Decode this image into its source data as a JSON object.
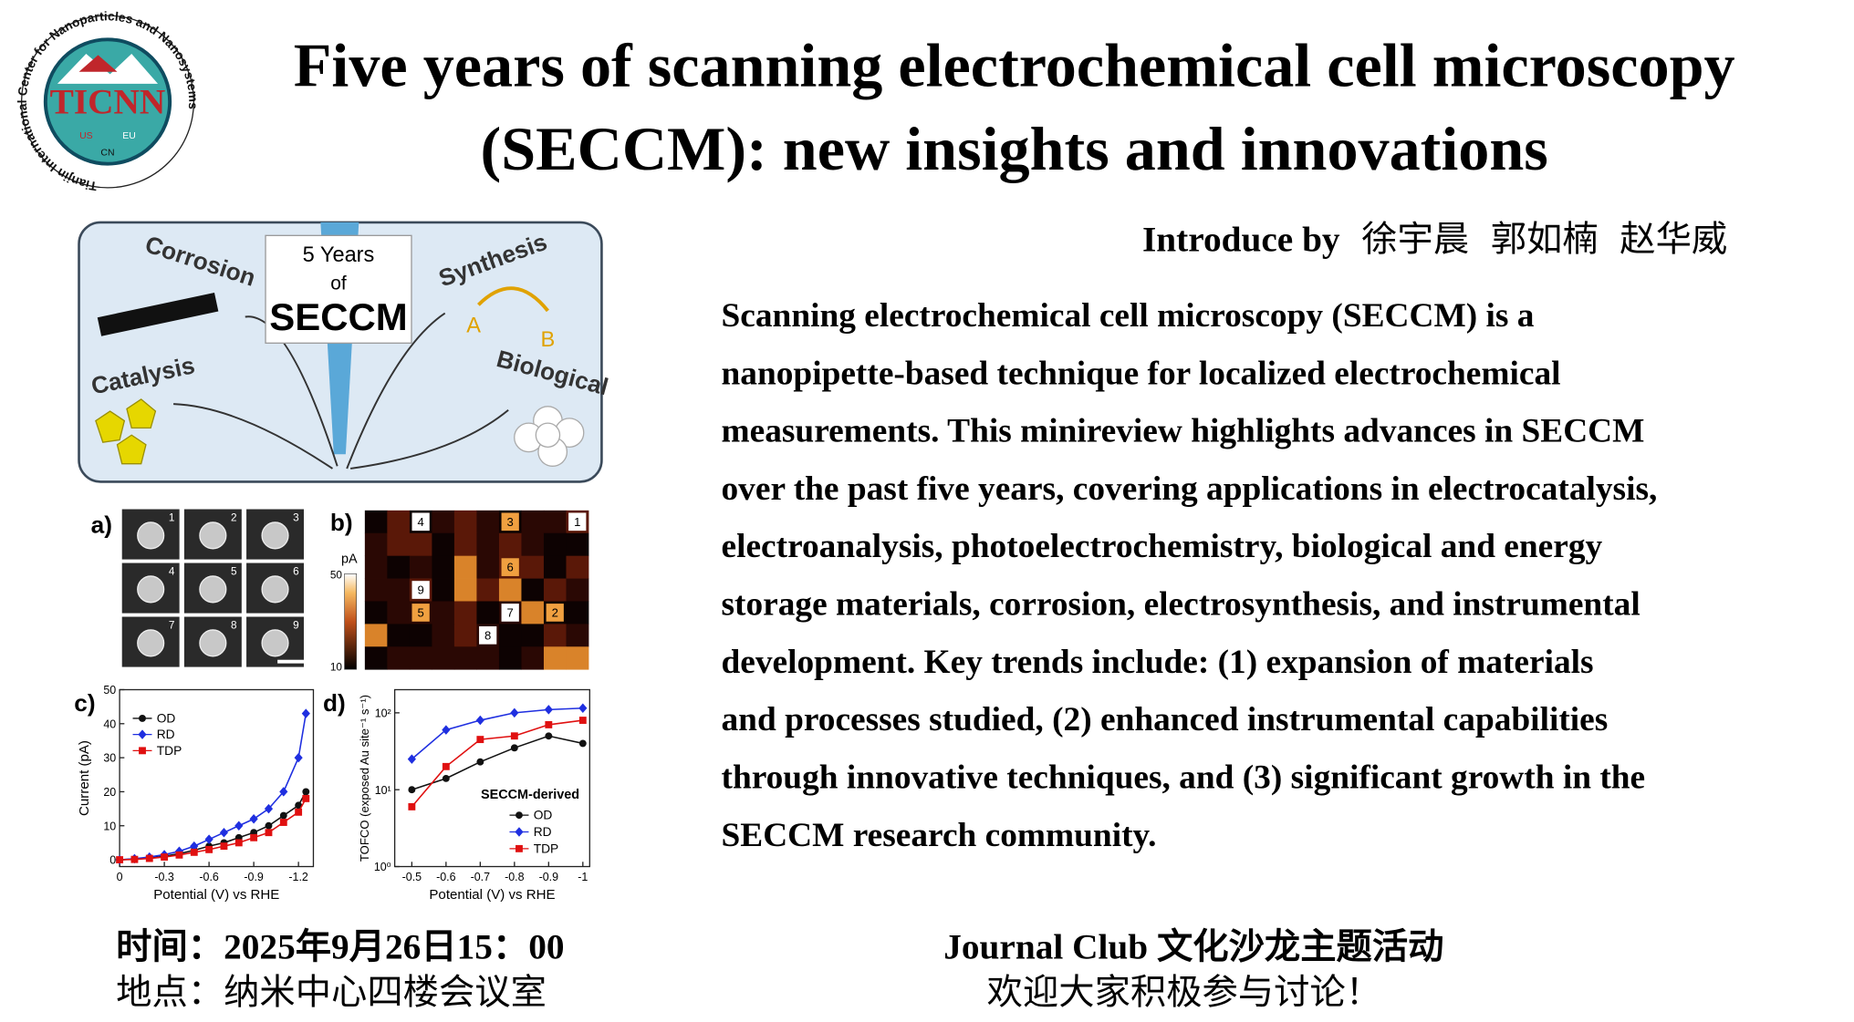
{
  "logo": {
    "ring": "Tianjin International Center for Nanoparticles and Nanosystems",
    "letters": "TICNN",
    "regions": [
      "US",
      "EU",
      "CN"
    ]
  },
  "title": [
    "Five years of scanning electrochemical cell microscopy",
    "(SECCM): new insights and innovations"
  ],
  "presenters": {
    "label": "Introduce by",
    "names": [
      "徐宇晨",
      "郭如楠",
      "赵华威"
    ]
  },
  "abstract_lines": [
    "Scanning electrochemical cell microscopy (SECCM) is a",
    "nanopipette-based technique for localized electrochemical",
    "measurements. This minireview highlights advances in SECCM",
    "over the past five years, covering applications in electrocatalysis,",
    "electroanalysis, photoelectrochemistry, biological and energy",
    "storage materials, corrosion, electrosynthesis, and instrumental",
    "development. Key trends include: (1) expansion of materials",
    "and processes studied, (2) enhanced instrumental capabilities",
    "through innovative techniques, and (3) significant growth in the",
    "SECCM research community."
  ],
  "figure": {
    "schematic": {
      "center": [
        "5 Years",
        "of",
        "SECCM"
      ],
      "corrosion": "Corrosion",
      "synthesis": "Synthesis",
      "a": "A",
      "b": "B",
      "catalysis": "Catalysis",
      "biological": "Biological"
    },
    "panel_a": {
      "label": "a)",
      "numbers": [
        1,
        2,
        3,
        4,
        5,
        6,
        7,
        8,
        9
      ]
    },
    "panel_b": {
      "label": "b)",
      "unit": "pA",
      "scale": [
        50,
        10
      ],
      "numbers": [
        4,
        3,
        1,
        6,
        9,
        5,
        7,
        2,
        8
      ]
    }
  },
  "chart_data": [
    {
      "type": "line",
      "panel": "c)",
      "xlabel": "Potential (V) vs RHE",
      "ylabel": "Current (pA)",
      "xlim": [
        0,
        -1.3
      ],
      "ylim": [
        -2,
        50
      ],
      "xticks": [
        0,
        -0.3,
        -0.6,
        -0.9,
        -1.2
      ],
      "yticks": [
        0,
        10,
        20,
        30,
        40,
        50
      ],
      "x": [
        0,
        -0.1,
        -0.2,
        -0.3,
        -0.4,
        -0.5,
        -0.6,
        -0.7,
        -0.8,
        -0.9,
        -1.0,
        -1.1,
        -1.2,
        -1.25
      ],
      "series": [
        {
          "name": "OD",
          "color": "#111111",
          "marker": "circle",
          "values": [
            0,
            0.2,
            0.5,
            1,
            1.8,
            2.8,
            4,
            5,
            6.5,
            8,
            10,
            13,
            16,
            20
          ]
        },
        {
          "name": "RD",
          "color": "#1f2fe0",
          "marker": "diamond",
          "values": [
            0,
            0.3,
            0.8,
            1.5,
            2.5,
            4,
            6,
            8,
            10,
            12,
            15,
            20,
            30,
            43
          ]
        },
        {
          "name": "TDP",
          "color": "#e01010",
          "marker": "square",
          "values": [
            0,
            0.1,
            0.4,
            0.8,
            1.4,
            2.2,
            3,
            4,
            5,
            6.5,
            8,
            11,
            14,
            18
          ]
        }
      ]
    },
    {
      "type": "line",
      "panel": "d)",
      "xlabel": "Potential (V) vs RHE",
      "ylabel": "TOFCO (exposed Au site⁻¹ s⁻¹)",
      "legend_title": "SECCM-derived",
      "log_y": true,
      "xlim": [
        -0.45,
        -1.02
      ],
      "ylim": [
        1,
        200
      ],
      "xticks": [
        -0.5,
        -0.6,
        -0.7,
        -0.8,
        -0.9,
        -1
      ],
      "yticks": [
        {
          "value": 1,
          "label": "10⁰"
        },
        {
          "value": 10,
          "label": "10¹"
        },
        {
          "value": 100,
          "label": "10²"
        }
      ],
      "x": [
        -0.5,
        -0.6,
        -0.7,
        -0.8,
        -0.9,
        -1
      ],
      "series": [
        {
          "name": "OD",
          "color": "#111111",
          "marker": "circle",
          "values": [
            10,
            14,
            23,
            35,
            50,
            40
          ]
        },
        {
          "name": "RD",
          "color": "#1f2fe0",
          "marker": "diamond",
          "values": [
            25,
            60,
            80,
            100,
            110,
            115
          ]
        },
        {
          "name": "TDP",
          "color": "#e01010",
          "marker": "square",
          "values": [
            6,
            20,
            45,
            50,
            70,
            80
          ]
        }
      ]
    }
  ],
  "footer": {
    "time": "时间：2025年9月26日15：00",
    "place": "地点：纳米中心四楼会议室",
    "event": "Journal Club 文化沙龙主题活动",
    "invite": "欢迎大家积极参与讨论！"
  }
}
